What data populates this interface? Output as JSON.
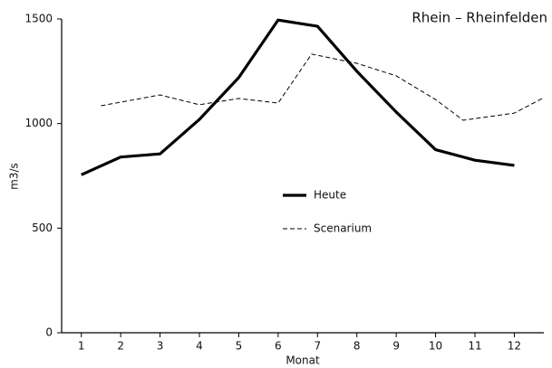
{
  "chart_data": {
    "type": "line",
    "title": "Rhein – Rheinfelden",
    "xlabel": "Monat",
    "ylabel": "m3/s",
    "xlim": [
      0.5,
      12.75
    ],
    "ylim": [
      0,
      1500
    ],
    "xticks": [
      1,
      2,
      3,
      4,
      5,
      6,
      7,
      8,
      9,
      10,
      11,
      12
    ],
    "yticks": [
      0,
      500,
      1000,
      1500
    ],
    "series": [
      {
        "name": "Heute",
        "color": "#000000",
        "style": "solid",
        "x": [
          1,
          2,
          3,
          4,
          5,
          6,
          7,
          8,
          9,
          10,
          11,
          12
        ],
        "values": [
          755,
          840,
          855,
          1020,
          1220,
          1495,
          1465,
          1250,
          1055,
          875,
          825,
          800
        ]
      },
      {
        "name": "Scenarium",
        "color": "#000000",
        "style": "dashed",
        "x": [
          1.5,
          3,
          4,
          5,
          6,
          6.85,
          8,
          9,
          10,
          10.7,
          12,
          12.75
        ],
        "values": [
          1085,
          1137,
          1090,
          1120,
          1098,
          1332,
          1288,
          1228,
          1115,
          1016,
          1050,
          1124
        ]
      }
    ]
  }
}
